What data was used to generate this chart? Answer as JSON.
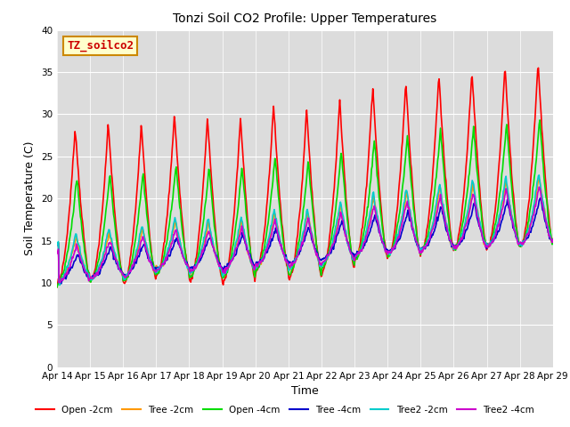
{
  "title": "Tonzi Soil CO2 Profile: Upper Temperatures",
  "xlabel": "Time",
  "ylabel": "Soil Temperature (C)",
  "ylim": [
    0,
    40
  ],
  "yticks": [
    0,
    5,
    10,
    15,
    20,
    25,
    30,
    35,
    40
  ],
  "annotation_text": "TZ_soilco2",
  "annotation_color": "#cc0000",
  "annotation_bg": "#ffffcc",
  "annotation_border": "#cc8800",
  "bg_color": "#dcdcdc",
  "fig_bg": "#ffffff",
  "series": [
    {
      "label": "Open -2cm",
      "color": "#ff0000",
      "lw": 1.2
    },
    {
      "label": "Tree -2cm",
      "color": "#ff9900",
      "lw": 1.2
    },
    {
      "label": "Open -4cm",
      "color": "#00dd00",
      "lw": 1.2
    },
    {
      "label": "Tree -4cm",
      "color": "#0000cc",
      "lw": 1.2
    },
    {
      "label": "Tree2 -2cm",
      "color": "#00cccc",
      "lw": 1.2
    },
    {
      "label": "Tree2 -4cm",
      "color": "#cc00cc",
      "lw": 1.2
    }
  ],
  "xtick_labels": [
    "Apr 14",
    "Apr 15",
    "Apr 16",
    "Apr 17",
    "Apr 18",
    "Apr 19",
    "Apr 20",
    "Apr 21",
    "Apr 22",
    "Apr 23",
    "Apr 24",
    "Apr 25",
    "Apr 26",
    "Apr 27",
    "Apr 28",
    "Apr 29"
  ],
  "days": 15
}
